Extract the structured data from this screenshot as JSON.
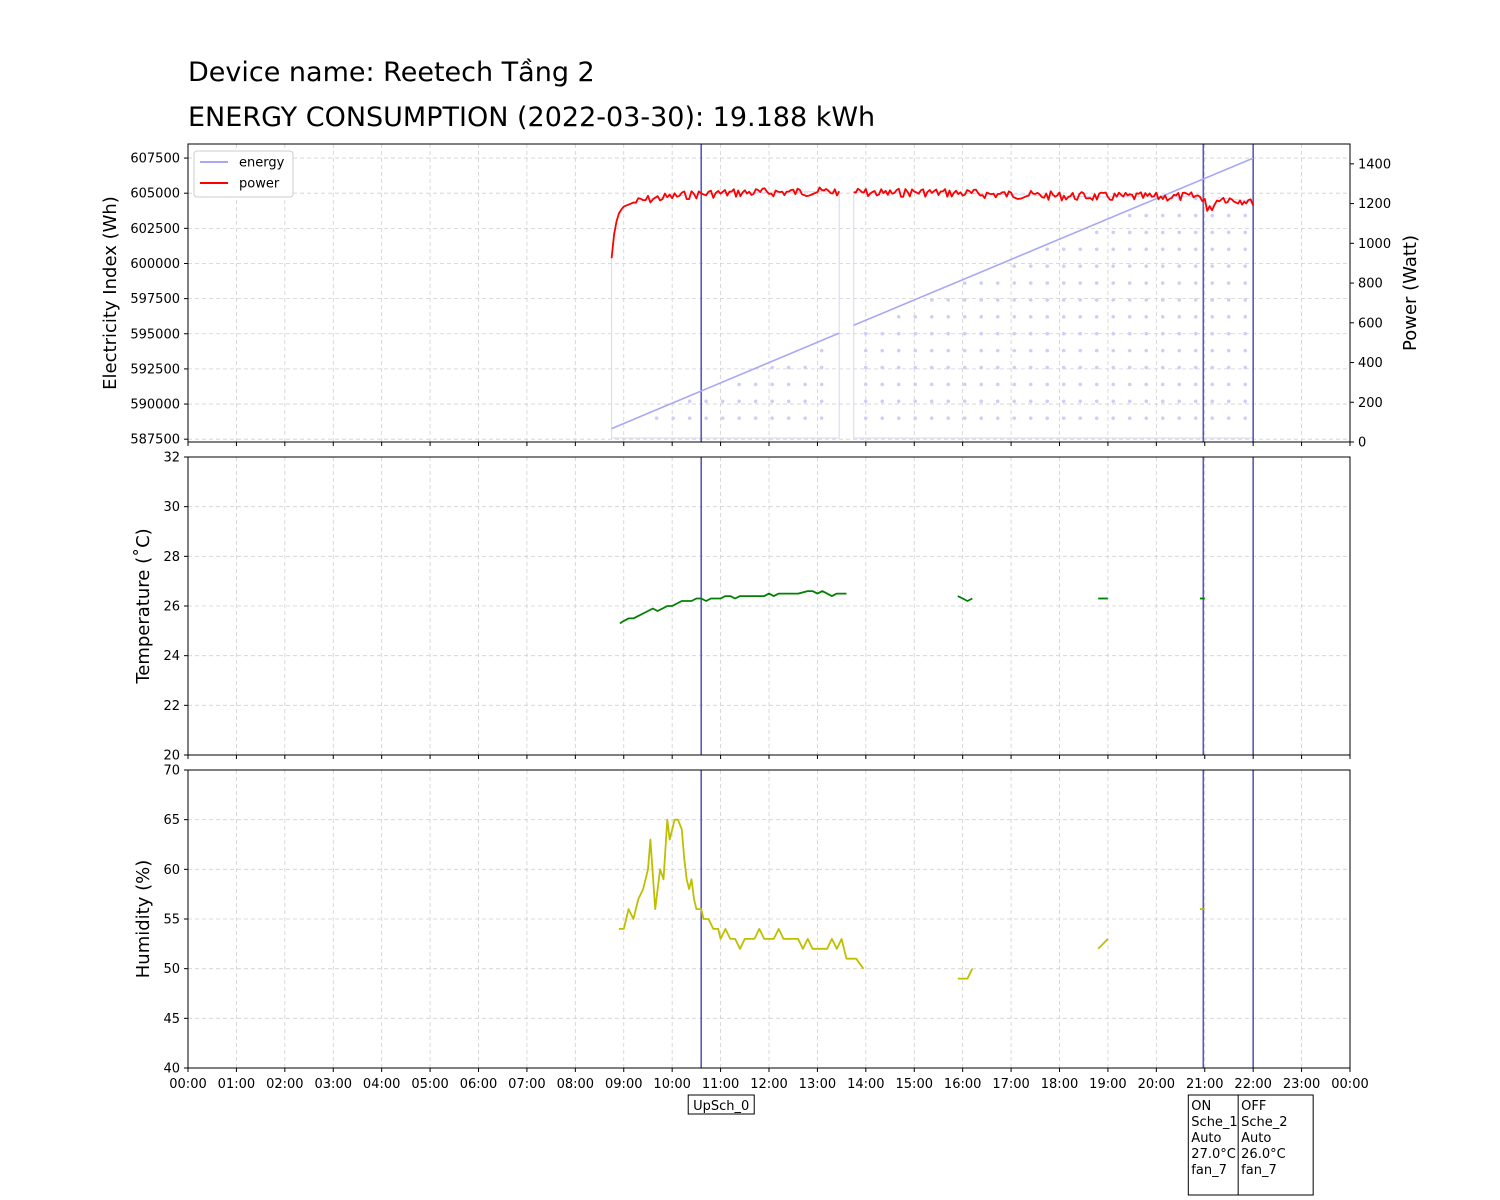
{
  "header": {
    "device_line": "Device name: Reetech Tầng 2",
    "energy_line": "ENERGY CONSUMPTION (2022-03-30): 19.188 kWh"
  },
  "colors": {
    "energy": "#a8a8f6",
    "power": "#ff0000",
    "temperature": "#008000",
    "humidity": "#bfbf00",
    "event_line": "#5a5ab8",
    "grid": "#d0d0d0"
  },
  "chart_data": [
    {
      "id": "energy_power",
      "type": "line",
      "x_unit": "hour of day",
      "xlim": [
        0,
        24
      ],
      "x_ticks": [
        "00:00",
        "01:00",
        "02:00",
        "03:00",
        "04:00",
        "05:00",
        "06:00",
        "07:00",
        "08:00",
        "09:00",
        "10:00",
        "11:00",
        "12:00",
        "13:00",
        "14:00",
        "15:00",
        "16:00",
        "17:00",
        "18:00",
        "19:00",
        "20:00",
        "21:00",
        "22:00",
        "23:00",
        "00:00"
      ],
      "ylabel": "Electricity Index (Wh)",
      "ylim": [
        587300,
        608500
      ],
      "y_ticks": [
        587500,
        590000,
        592500,
        595000,
        597500,
        600000,
        602500,
        605000,
        607500
      ],
      "y2label": "Power (Watt)",
      "y2lim": [
        0,
        1500
      ],
      "y2_ticks": [
        0,
        200,
        400,
        600,
        800,
        1000,
        1200,
        1400
      ],
      "grid": true,
      "legend": {
        "placement": "top-left",
        "entries": [
          {
            "name": "energy",
            "color": "#a8a8f6"
          },
          {
            "name": "power",
            "color": "#ff0000"
          }
        ]
      },
      "series": [
        {
          "name": "energy",
          "axis": "left",
          "segments": [
            [
              [
                8.75,
                588250
              ],
              [
                13.45,
                595050
              ]
            ],
            [
              [
                13.75,
                595600
              ],
              [
                22.0,
                607500
              ]
            ]
          ]
        },
        {
          "name": "power",
          "axis": "right",
          "segments": [
            [
              [
                8.75,
                925
              ],
              [
                8.8,
                1045
              ],
              [
                8.85,
                1110
              ],
              [
                8.9,
                1150
              ],
              [
                8.95,
                1170
              ],
              [
                9.0,
                1185
              ],
              [
                9.1,
                1195
              ],
              [
                9.2,
                1205
              ],
              [
                9.3,
                1210
              ],
              [
                9.4,
                1215
              ],
              [
                9.5,
                1220
              ],
              [
                9.6,
                1225
              ],
              [
                9.8,
                1230
              ],
              [
                10.0,
                1235
              ],
              [
                10.2,
                1240
              ],
              [
                10.4,
                1245
              ],
              [
                10.6,
                1248
              ],
              [
                10.8,
                1250
              ],
              [
                11.0,
                1252
              ],
              [
                11.5,
                1255
              ],
              [
                12.0,
                1257
              ],
              [
                12.5,
                1258
              ],
              [
                13.0,
                1260
              ],
              [
                13.45,
                1262
              ]
            ],
            [
              [
                13.75,
                1258
              ],
              [
                14.0,
                1255
              ],
              [
                14.5,
                1252
              ],
              [
                15.0,
                1258
              ],
              [
                15.5,
                1255
              ],
              [
                16.0,
                1252
              ],
              [
                16.5,
                1248
              ],
              [
                17.0,
                1245
              ],
              [
                17.5,
                1242
              ],
              [
                18.0,
                1238
              ],
              [
                18.5,
                1236
              ],
              [
                19.0,
                1234
              ],
              [
                19.5,
                1235
              ],
              [
                20.0,
                1233
              ],
              [
                20.5,
                1235
              ],
              [
                20.9,
                1236
              ],
              [
                21.0,
                1225
              ],
              [
                21.05,
                1160
              ],
              [
                21.1,
                1170
              ],
              [
                21.3,
                1230
              ],
              [
                21.6,
                1220
              ],
              [
                21.9,
                1215
              ],
              [
                22.0,
                1190
              ]
            ]
          ]
        }
      ],
      "area_fill": {
        "series": "power",
        "segments": [
          [
            8.75,
            13.45
          ],
          [
            13.75,
            22.0
          ]
        ]
      },
      "vlines": [
        10.6,
        20.97,
        22.0
      ]
    },
    {
      "id": "temperature",
      "type": "line",
      "xlim": [
        0,
        24
      ],
      "ylabel": "Temperature ($^{\\circ}$C)",
      "ylim": [
        20,
        32
      ],
      "y_ticks": [
        20,
        22,
        24,
        26,
        28,
        30,
        32
      ],
      "grid": true,
      "series": [
        {
          "name": "temperature",
          "segments": [
            [
              [
                8.92,
                25.3
              ],
              [
                9.0,
                25.4
              ],
              [
                9.1,
                25.5
              ],
              [
                9.2,
                25.5
              ],
              [
                9.3,
                25.6
              ],
              [
                9.4,
                25.7
              ],
              [
                9.5,
                25.8
              ],
              [
                9.6,
                25.9
              ],
              [
                9.7,
                25.8
              ],
              [
                9.8,
                25.9
              ],
              [
                9.9,
                26.0
              ],
              [
                10.0,
                26.0
              ],
              [
                10.1,
                26.1
              ],
              [
                10.2,
                26.2
              ],
              [
                10.4,
                26.2
              ],
              [
                10.5,
                26.3
              ],
              [
                10.6,
                26.3
              ],
              [
                10.7,
                26.2
              ],
              [
                10.8,
                26.3
              ],
              [
                11.0,
                26.3
              ],
              [
                11.1,
                26.4
              ],
              [
                11.2,
                26.4
              ],
              [
                11.3,
                26.3
              ],
              [
                11.4,
                26.4
              ],
              [
                11.6,
                26.4
              ],
              [
                11.7,
                26.4
              ],
              [
                11.8,
                26.4
              ],
              [
                11.9,
                26.4
              ],
              [
                12.0,
                26.5
              ],
              [
                12.1,
                26.4
              ],
              [
                12.2,
                26.5
              ],
              [
                12.4,
                26.5
              ],
              [
                12.5,
                26.5
              ],
              [
                12.6,
                26.5
              ],
              [
                12.8,
                26.6
              ],
              [
                12.9,
                26.6
              ],
              [
                13.0,
                26.5
              ],
              [
                13.1,
                26.6
              ],
              [
                13.2,
                26.5
              ],
              [
                13.3,
                26.4
              ],
              [
                13.4,
                26.5
              ],
              [
                13.6,
                26.5
              ]
            ],
            [
              [
                15.9,
                26.4
              ],
              [
                16.0,
                26.3
              ],
              [
                16.1,
                26.2
              ],
              [
                16.2,
                26.3
              ]
            ],
            [
              [
                18.8,
                26.3
              ],
              [
                19.0,
                26.3
              ]
            ],
            [
              [
                20.9,
                26.3
              ],
              [
                21.0,
                26.3
              ]
            ]
          ]
        }
      ],
      "vlines": [
        10.6,
        20.97,
        22.0
      ]
    },
    {
      "id": "humidity",
      "type": "line",
      "xlim": [
        0,
        24
      ],
      "ylabel": "Humidity (%)",
      "ylim": [
        40,
        70
      ],
      "y_ticks": [
        40,
        45,
        50,
        55,
        60,
        65,
        70
      ],
      "grid": true,
      "series": [
        {
          "name": "humidity",
          "segments": [
            [
              [
                8.9,
                54
              ],
              [
                9.0,
                54
              ],
              [
                9.05,
                55
              ],
              [
                9.1,
                56
              ],
              [
                9.2,
                55
              ],
              [
                9.3,
                57
              ],
              [
                9.4,
                58
              ],
              [
                9.5,
                60
              ],
              [
                9.55,
                63
              ],
              [
                9.65,
                56
              ],
              [
                9.75,
                60
              ],
              [
                9.82,
                59
              ],
              [
                9.9,
                65
              ],
              [
                9.95,
                63
              ],
              [
                10.0,
                64
              ],
              [
                10.05,
                65
              ],
              [
                10.12,
                65
              ],
              [
                10.2,
                64
              ],
              [
                10.25,
                61
              ],
              [
                10.3,
                59
              ],
              [
                10.35,
                58
              ],
              [
                10.4,
                59
              ],
              [
                10.45,
                57
              ],
              [
                10.5,
                56
              ],
              [
                10.6,
                56
              ],
              [
                10.65,
                55
              ],
              [
                10.75,
                55
              ],
              [
                10.85,
                54
              ],
              [
                10.95,
                54
              ],
              [
                11.0,
                53
              ],
              [
                11.1,
                54
              ],
              [
                11.2,
                53
              ],
              [
                11.3,
                53
              ],
              [
                11.4,
                52
              ],
              [
                11.5,
                53
              ],
              [
                11.6,
                53
              ],
              [
                11.7,
                53
              ],
              [
                11.8,
                54
              ],
              [
                11.9,
                53
              ],
              [
                12.0,
                53
              ],
              [
                12.1,
                53
              ],
              [
                12.2,
                54
              ],
              [
                12.3,
                53
              ],
              [
                12.4,
                53
              ],
              [
                12.5,
                53
              ],
              [
                12.6,
                53
              ],
              [
                12.7,
                52
              ],
              [
                12.8,
                53
              ],
              [
                12.9,
                52
              ],
              [
                13.0,
                52
              ],
              [
                13.1,
                52
              ],
              [
                13.2,
                52
              ],
              [
                13.3,
                53
              ],
              [
                13.4,
                52
              ],
              [
                13.5,
                53
              ],
              [
                13.55,
                52
              ],
              [
                13.6,
                51
              ],
              [
                13.8,
                51
              ],
              [
                13.95,
                50
              ]
            ],
            [
              [
                15.9,
                49
              ],
              [
                16.1,
                49
              ],
              [
                16.2,
                50
              ]
            ],
            [
              [
                18.8,
                52
              ],
              [
                19.0,
                53
              ]
            ],
            [
              [
                20.9,
                56
              ],
              [
                21.0,
                56
              ]
            ]
          ]
        }
      ],
      "vlines": [
        10.6,
        20.97,
        22.0
      ]
    }
  ],
  "events": [
    {
      "x": 10.6,
      "lines": [
        "UpSch_0"
      ]
    },
    {
      "x": 20.97,
      "lines": [
        "ON",
        "Sche_1",
        "Auto",
        "27.0°C",
        "fan_7"
      ]
    },
    {
      "x": 22.0,
      "lines": [
        "OFF",
        "Sche_2",
        "Auto",
        "26.0°C",
        "fan_7"
      ]
    }
  ]
}
